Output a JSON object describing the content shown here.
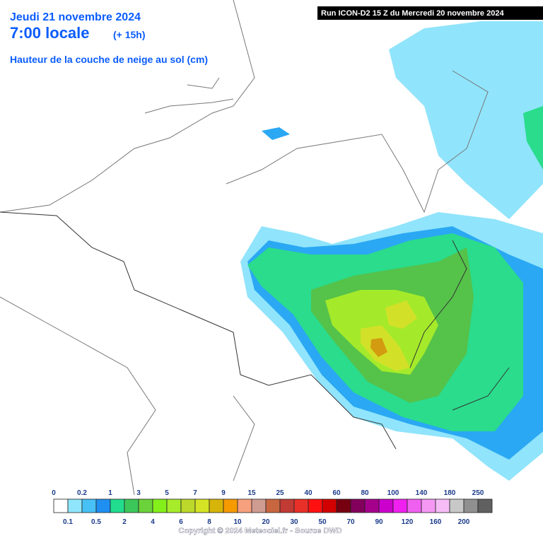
{
  "header": {
    "date": "Jeudi 21 novembre 2024",
    "time": "7:00 locale",
    "offset": "(+ 15h)",
    "variable": "Hauteur de la couche de neige au sol (cm)"
  },
  "run": "Run ICON-D2 15 Z du Mercredi 20 novembre 2024",
  "legend": {
    "labels": [
      "0",
      "0.1",
      "0.2",
      "0.5",
      "1",
      "2",
      "3",
      "4",
      "5",
      "6",
      "7",
      "8",
      "9",
      "10",
      "15",
      "20",
      "25",
      "30",
      "40",
      "50",
      "60",
      "70",
      "80",
      "90",
      "100",
      "120",
      "140",
      "160",
      "180",
      "200",
      "250"
    ]
  },
  "copyright": "Copyright © 2024 Meteociel.fr - Source DWD"
}
